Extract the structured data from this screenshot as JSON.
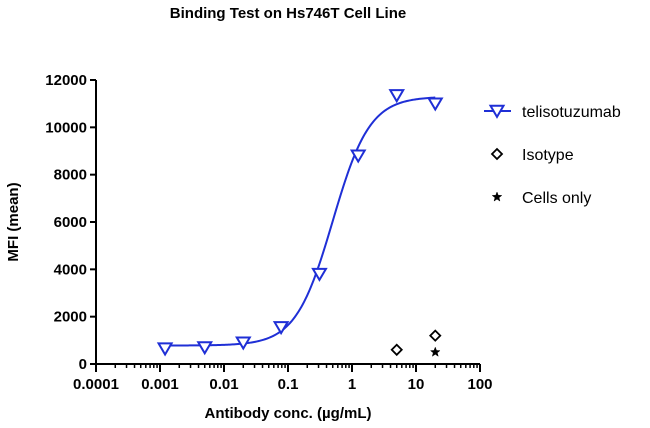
{
  "chart_data": {
    "type": "scatter",
    "title": "Binding Test on Hs746T  Cell Line",
    "xlabel": "Antibody conc. (µg/mL)",
    "ylabel": "MFI (mean)",
    "x_scale": "log",
    "xlim": [
      0.0001,
      100
    ],
    "ylim": [
      0,
      12000
    ],
    "x_ticks": [
      0.0001,
      0.001,
      0.01,
      0.1,
      1,
      10,
      100
    ],
    "x_tick_labels": [
      "0.0001",
      "0.001",
      "0.01",
      "0.1",
      "1",
      "10",
      "100"
    ],
    "y_ticks": [
      0,
      2000,
      4000,
      6000,
      8000,
      10000,
      12000
    ],
    "y_tick_labels": [
      "0",
      "2000",
      "4000",
      "6000",
      "8000",
      "10000",
      "12000"
    ],
    "grid": false,
    "legend_position": "right",
    "series": [
      {
        "name": "telisotuzumab",
        "marker": "triangle-down-open",
        "color": "#1f2fd6",
        "fit_curve": {
          "model": "4PL",
          "bottom": 780,
          "top": 11300,
          "ec50": 0.5,
          "hill": 1.5
        },
        "points": [
          {
            "x": 0.0012,
            "y": 650
          },
          {
            "x": 0.005,
            "y": 700
          },
          {
            "x": 0.02,
            "y": 900
          },
          {
            "x": 0.078,
            "y": 1550
          },
          {
            "x": 0.31,
            "y": 3800
          },
          {
            "x": 1.25,
            "y": 8800
          },
          {
            "x": 5,
            "y": 11350
          },
          {
            "x": 20,
            "y": 11000
          }
        ]
      },
      {
        "name": "Isotype",
        "marker": "diamond-open",
        "color": "#000000",
        "points": [
          {
            "x": 5,
            "y": 600
          },
          {
            "x": 20,
            "y": 1200
          }
        ]
      },
      {
        "name": "Cells only",
        "marker": "star",
        "color": "#000000",
        "points": [
          {
            "x": 20,
            "y": 500
          }
        ]
      }
    ]
  }
}
